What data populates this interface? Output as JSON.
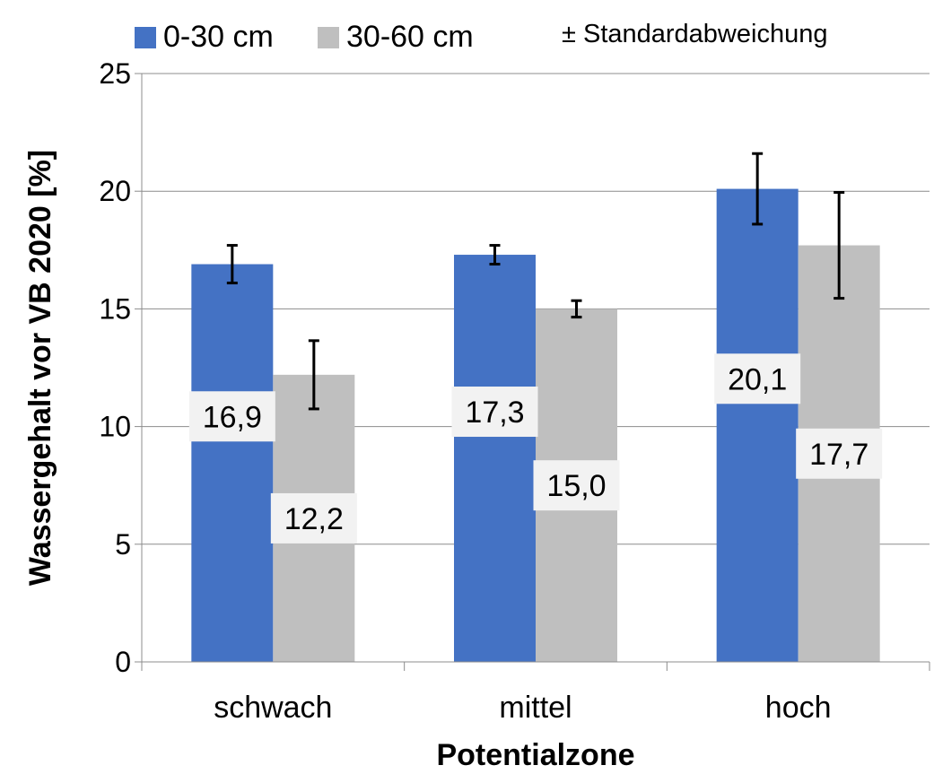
{
  "chart_data": {
    "type": "bar",
    "categories": [
      "schwach",
      "mittel",
      "hoch"
    ],
    "series": [
      {
        "name": "0-30 cm",
        "color": "#4472C4",
        "values": [
          16.9,
          17.3,
          20.1
        ],
        "labels": [
          "16,9",
          "17,3",
          "20,1"
        ],
        "error": [
          0.8,
          0.4,
          1.5
        ]
      },
      {
        "name": "30-60 cm",
        "color": "#BFBFBF",
        "values": [
          12.2,
          15.0,
          17.7
        ],
        "labels": [
          "12,2",
          "15,0",
          "17,7"
        ],
        "error": [
          1.45,
          0.35,
          2.25
        ]
      }
    ],
    "note": "± Standardabweichung",
    "xlabel": "Potentialzone",
    "ylabel": "Wassergehalt  vor VB 2020 [%]",
    "ylim": [
      0,
      25
    ],
    "yticks": [
      "0",
      "5",
      "10",
      "15",
      "20",
      "25"
    ],
    "grid": true,
    "legend_position": "top-left"
  }
}
